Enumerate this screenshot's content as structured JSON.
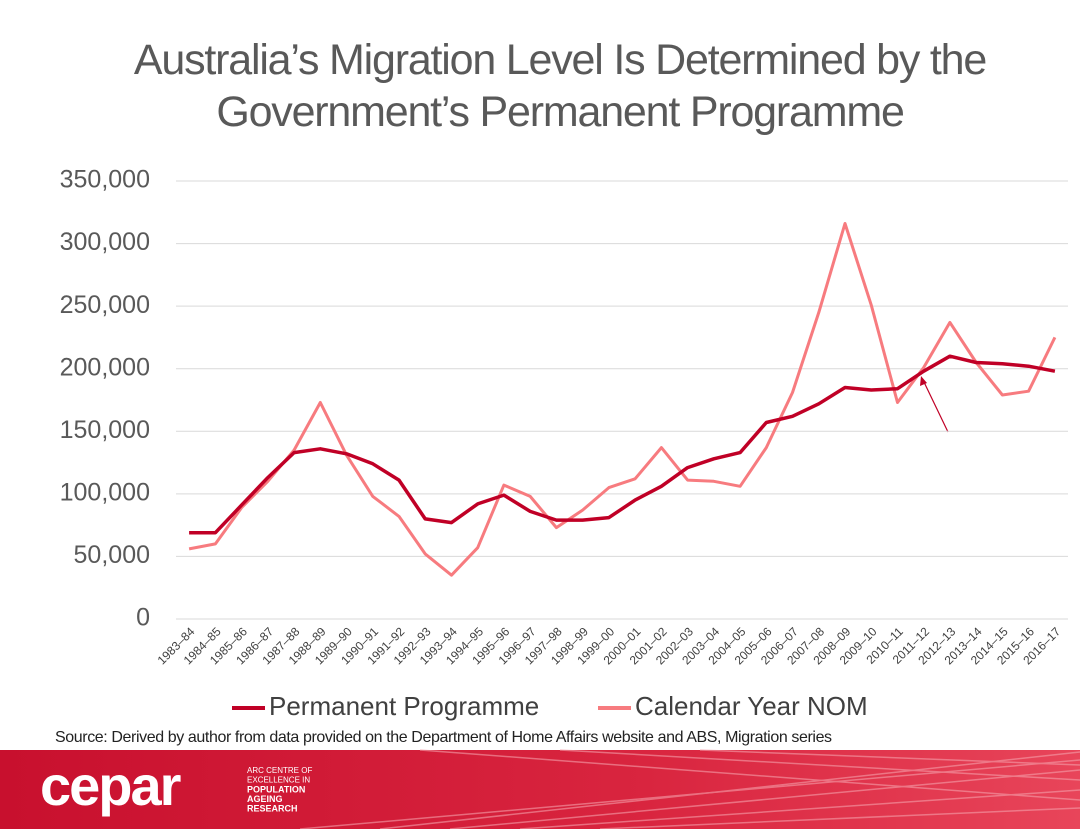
{
  "chart_data": {
    "type": "line",
    "title": "Australia’s Migration Level Is Determined by the Government’s Permanent Programme",
    "categories": [
      "1983–84",
      "1984–85",
      "1985–86",
      "1986–87",
      "1987–88",
      "1988–89",
      "1989–90",
      "1990–91",
      "1991–92",
      "1992–93",
      "1993–94",
      "1994–95",
      "1995–96",
      "1996–97",
      "1997–98",
      "1998–99",
      "1999–00",
      "2000–01",
      "2001–02",
      "2002–03",
      "2003–04",
      "2004–05",
      "2005–06",
      "2006–07",
      "2007–08",
      "2008–09",
      "2009–10",
      "2010–11",
      "2011–12",
      "2012–13",
      "2013–14",
      "2014–15",
      "2015–16",
      "2016–17"
    ],
    "series": [
      {
        "name": "Permanent Programme",
        "color": "#c00026",
        "values": [
          69000,
          69000,
          91000,
          113000,
          133000,
          136000,
          132000,
          124000,
          111000,
          80000,
          77000,
          92000,
          99000,
          86000,
          79000,
          79000,
          81000,
          95000,
          106000,
          121000,
          128000,
          133000,
          157000,
          162000,
          172000,
          185000,
          183000,
          184000,
          198000,
          210000,
          205000,
          204000,
          202000,
          198000
        ]
      },
      {
        "name": "Calendar Year NOM",
        "color": "#f77b7f",
        "values": [
          56000,
          60000,
          89000,
          110000,
          135000,
          173000,
          131000,
          98000,
          82000,
          52000,
          35000,
          57000,
          107000,
          98000,
          73000,
          87000,
          105000,
          112000,
          137000,
          111000,
          110000,
          106000,
          137000,
          181000,
          245000,
          316000,
          251000,
          173000,
          201000,
          237000,
          205000,
          179000,
          182000,
          225000
        ]
      }
    ],
    "ylim": [
      0,
      350000
    ],
    "yticks": [
      0,
      {
        "value": 50000,
        "label": "50,000"
      },
      {
        "value": 100000,
        "label": "100,000"
      },
      {
        "value": 150000,
        "label": "150,000"
      },
      {
        "value": 200000,
        "label": "200,000"
      },
      {
        "value": 250000,
        "label": "250,000"
      },
      {
        "value": 300000,
        "label": "300,000"
      },
      {
        "value": 350000,
        "label": "350,000"
      }
    ],
    "grid": true,
    "legend": "bottom",
    "source": "Source: Derived by author from data provided on the Department of Home Affairs website and ABS, Migration series"
  },
  "footer": {
    "logo": "cepar",
    "tagline": [
      "ARC CENTRE OF",
      "EXCELLENCE IN",
      "POPULATION",
      "AGEING",
      "RESEARCH"
    ]
  }
}
